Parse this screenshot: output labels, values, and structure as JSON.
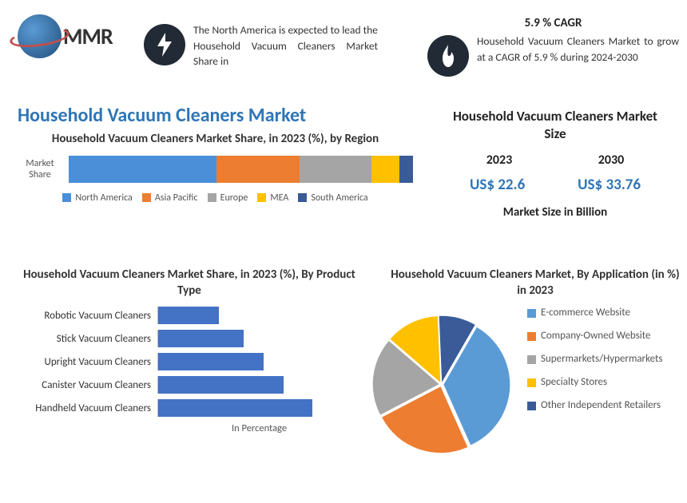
{
  "logo": {
    "text": "MMR"
  },
  "top": {
    "blurb_left": "The North America is expected to lead the Household Vacuum Cleaners Market Share in",
    "cagr_heading": "5.9 % CAGR",
    "blurb_right": "Household Vacuum Cleaners Market to grow at a CAGR of 5.9 % during 2024-2030"
  },
  "main_title": "Household Vacuum Cleaners Market",
  "region_chart": {
    "title": "Household Vacuum Cleaners Market Share, in 2023 (%), by Region",
    "axis_label": "Market Share",
    "segments": [
      {
        "label": "North America",
        "value": 43,
        "color": "#4a8fd8"
      },
      {
        "label": "Asia Pacific",
        "value": 24,
        "color": "#ed7d31"
      },
      {
        "label": "Europe",
        "value": 21,
        "color": "#a5a5a5"
      },
      {
        "label": "MEA",
        "value": 8,
        "color": "#ffc000"
      },
      {
        "label": "South America",
        "value": 4,
        "color": "#3a5b98"
      }
    ],
    "swatch_size": 11,
    "font_size": 12
  },
  "size_box": {
    "title": "Household Vacuum Cleaners Market Size",
    "years": [
      "2023",
      "2030"
    ],
    "values": [
      "US$  22.6",
      "US$  33.76"
    ],
    "unit": "Market Size in Billion",
    "value_color": "#2e75b6"
  },
  "product_chart": {
    "title": "Household Vacuum Cleaners Market Share, in 2023 (%), By Product Type",
    "xlabel": "In Percentage",
    "bar_color": "#4472c4",
    "max": 100,
    "bars": [
      {
        "label": "Robotic Vacuum Cleaners",
        "value": 30
      },
      {
        "label": "Stick Vacuum Cleaners",
        "value": 42
      },
      {
        "label": "Upright Vacuum Cleaners",
        "value": 52
      },
      {
        "label": "Canister Vacuum Cleaners",
        "value": 62
      },
      {
        "label": "Handheld Vacuum Cleaners",
        "value": 76
      }
    ]
  },
  "pie_chart": {
    "title": "Household Vacuum Cleaners Market, By Application (in %) in 2023",
    "slices": [
      {
        "label": "E-commerce Website",
        "value": 35,
        "color": "#5b9bd5"
      },
      {
        "label": "Company-Owned Website",
        "value": 24,
        "color": "#ed7d31"
      },
      {
        "label": "Supermarkets/Hypermarkets",
        "value": 19,
        "color": "#a5a5a5"
      },
      {
        "label": "Specialty Stores",
        "value": 13,
        "color": "#ffc000"
      },
      {
        "label": "Other Independent Retailers",
        "value": 9,
        "color": "#3a5b98"
      }
    ],
    "explode_gap": 3,
    "start_angle": -60
  }
}
